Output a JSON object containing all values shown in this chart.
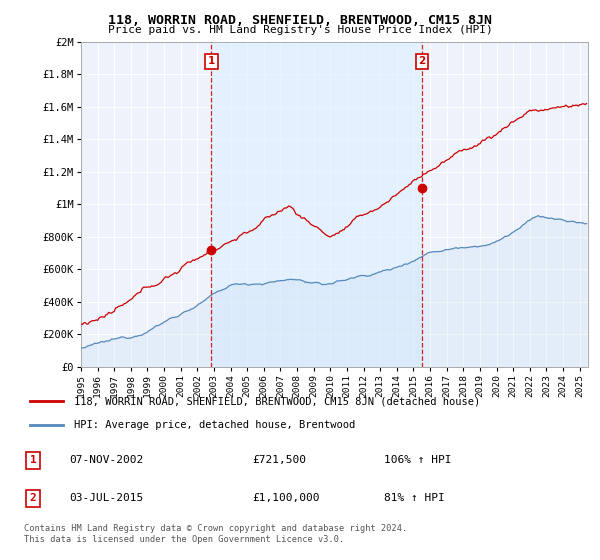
{
  "title": "118, WORRIN ROAD, SHENFIELD, BRENTWOOD, CM15 8JN",
  "subtitle": "Price paid vs. HM Land Registry's House Price Index (HPI)",
  "ylabel_ticks": [
    0,
    200000,
    400000,
    600000,
    800000,
    1000000,
    1200000,
    1400000,
    1600000,
    1800000,
    2000000
  ],
  "ylabel_labels": [
    "£0",
    "£200K",
    "£400K",
    "£600K",
    "£800K",
    "£1M",
    "£1.2M",
    "£1.4M",
    "£1.6M",
    "£1.8M",
    "£2M"
  ],
  "ylim": [
    0,
    2000000
  ],
  "xlim_start": 1995.0,
  "xlim_end": 2025.5,
  "sale1_x": 2002.85,
  "sale1_y": 721500,
  "sale1_label": "1",
  "sale1_date": "07-NOV-2002",
  "sale1_price": "£721,500",
  "sale1_hpi": "106% ↑ HPI",
  "sale2_x": 2015.5,
  "sale2_y": 1100000,
  "sale2_label": "2",
  "sale2_date": "03-JUL-2015",
  "sale2_price": "£1,100,000",
  "sale2_hpi": "81% ↑ HPI",
  "red_color": "#cc0000",
  "blue_color": "#5588bb",
  "blue_fill_color": "#ddeeff",
  "legend_label_red": "118, WORRIN ROAD, SHENFIELD, BRENTWOOD, CM15 8JN (detached house)",
  "legend_label_blue": "HPI: Average price, detached house, Brentwood",
  "footer1": "Contains HM Land Registry data © Crown copyright and database right 2024.",
  "footer2": "This data is licensed under the Open Government Licence v3.0."
}
